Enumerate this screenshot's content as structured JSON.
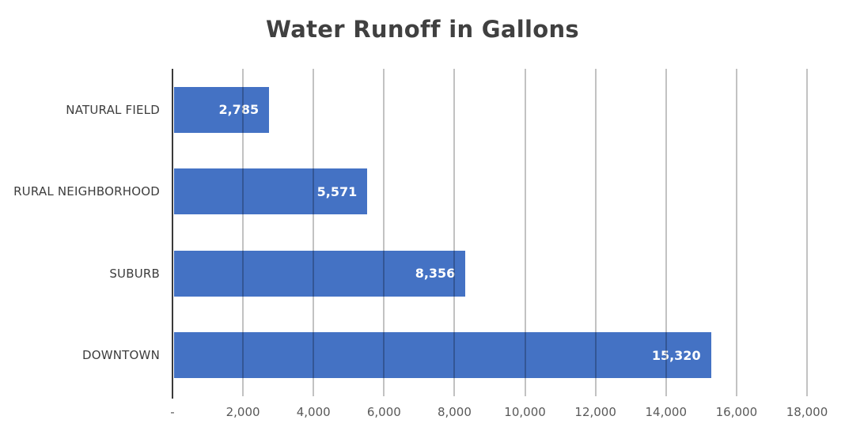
{
  "chart_data": {
    "type": "bar",
    "orientation": "horizontal",
    "title": "Water Runoff in Gallons",
    "categories": [
      "NATURAL FIELD",
      "RURAL NEIGHBORHOOD",
      "SUBURB",
      "DOWNTOWN"
    ],
    "values": [
      2785,
      5571,
      8356,
      15320
    ],
    "value_labels": [
      "2,785",
      "5,571",
      "8,356",
      "15,320"
    ],
    "xlabel": "",
    "ylabel": "",
    "xlim": [
      0,
      18000
    ],
    "x_tick_interval": 2000,
    "x_tick_labels": [
      "-",
      "2,000",
      "4,000",
      "6,000",
      "8,000",
      "10,000",
      "12,000",
      "14,000",
      "16,000",
      "18,000"
    ],
    "grid": true,
    "legend": false,
    "value_labels_position": "inside-end"
  },
  "colors": {
    "bar_fill": "#4472C4",
    "bar_border": "#FFFFFF",
    "gridline": "rgba(0,0,0,0.24)",
    "axis_line": "#3A3A3A",
    "title_text": "#404040",
    "category_text": "#3D3D3D",
    "tick_text": "#595959",
    "value_text": "#FFFFFF",
    "background": "#FFFFFF"
  }
}
